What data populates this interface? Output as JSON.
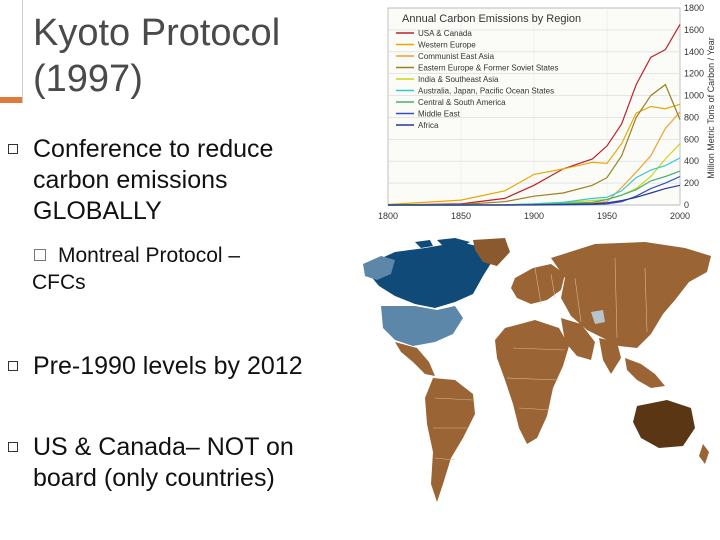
{
  "slide": {
    "title_line1": "Kyoto Protocol",
    "title_line2": "(1997)",
    "bullets": [
      {
        "lines": [
          "Conference to reduce",
          "carbon emissions",
          "GLOBALLY"
        ]
      },
      {
        "lines": [
          "Pre-1990 levels by 2012"
        ]
      },
      {
        "lines": [
          "US & Canada– NOT on",
          "board (only countries)"
        ]
      }
    ],
    "sub_bullet": {
      "lines": [
        "Montreal Protocol –",
        "CFCs"
      ]
    }
  },
  "colors": {
    "title": "#4a4a4a",
    "accent": "#e07a3a",
    "map_usa": "#0f4a78",
    "map_light": "#5d87a8",
    "map_brown": "#9a6435",
    "map_dark": "#5a3614"
  },
  "chart_data": {
    "type": "line",
    "title": "Annual Carbon Emissions by Region",
    "ylabel": "Million Metric Tons of Carbon / Year",
    "xlim": [
      1800,
      2000
    ],
    "ylim": [
      0,
      1800
    ],
    "x_ticks": [
      "1800",
      "1850",
      "1900",
      "1950",
      "2000"
    ],
    "y_ticks": [
      "0",
      "200",
      "400",
      "600",
      "800",
      "1000",
      "1200",
      "1400",
      "1600",
      "1800"
    ],
    "grid": true,
    "legend_position": "top-left",
    "x": [
      1800,
      1850,
      1880,
      1900,
      1920,
      1940,
      1950,
      1960,
      1970,
      1980,
      1990,
      2000
    ],
    "series": [
      {
        "name": "USA & Canada",
        "color": "#c0202a",
        "values": [
          0,
          10,
          60,
          180,
          330,
          420,
          540,
          740,
          1100,
          1350,
          1420,
          1650
        ]
      },
      {
        "name": "Western Europe",
        "color": "#e8a800",
        "values": [
          5,
          45,
          130,
          280,
          330,
          390,
          380,
          560,
          840,
          900,
          880,
          920
        ]
      },
      {
        "name": "Communist East Asia",
        "color": "#f0a030",
        "values": [
          0,
          0,
          0,
          2,
          10,
          20,
          30,
          160,
          300,
          450,
          700,
          850
        ]
      },
      {
        "name": "Eastern Europe & Former Soviet States",
        "color": "#9a8020",
        "values": [
          0,
          5,
          30,
          80,
          110,
          180,
          250,
          450,
          800,
          1000,
          1100,
          780
        ]
      },
      {
        "name": "India & Southeast Asia",
        "color": "#c8d818",
        "values": [
          0,
          0,
          2,
          10,
          25,
          40,
          50,
          90,
          150,
          260,
          420,
          560
        ]
      },
      {
        "name": "Australia, Japan, Pacific Ocean States",
        "color": "#30c8d8",
        "values": [
          0,
          0,
          2,
          10,
          25,
          60,
          70,
          130,
          250,
          320,
          360,
          430
        ]
      },
      {
        "name": "Central & South America",
        "color": "#4ab070",
        "values": [
          0,
          0,
          1,
          5,
          15,
          25,
          50,
          90,
          140,
          220,
          260,
          310
        ]
      },
      {
        "name": "Middle East",
        "color": "#3050c8",
        "values": [
          0,
          0,
          0,
          0,
          2,
          5,
          10,
          30,
          80,
          150,
          200,
          260
        ]
      },
      {
        "name": "Africa",
        "color": "#283890",
        "values": [
          0,
          0,
          0,
          2,
          5,
          10,
          20,
          40,
          70,
          110,
          150,
          180
        ]
      }
    ]
  }
}
